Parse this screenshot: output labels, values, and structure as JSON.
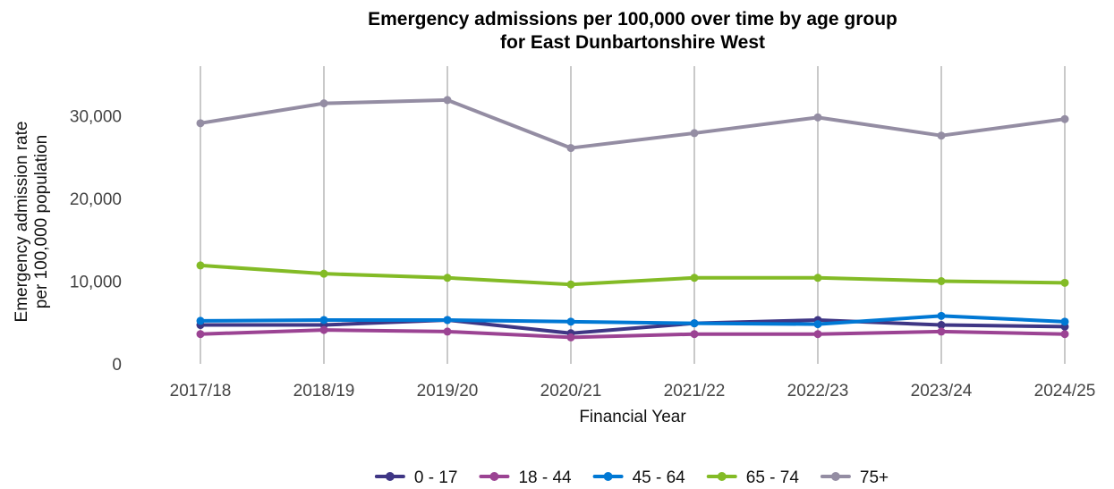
{
  "chart_data": {
    "type": "line",
    "title_line1": "Emergency admissions per 100,000 over time by age group",
    "title_line2": "for East Dunbartonshire West",
    "xlabel": "Financial Year",
    "ylabel_line1": "Emergency admission rate",
    "ylabel_line2": "per 100,000 population",
    "categories": [
      "2017/18",
      "2018/19",
      "2019/20",
      "2020/21",
      "2021/22",
      "2022/23",
      "2023/24",
      "2024/25"
    ],
    "y_ticks": [
      0,
      10000,
      20000,
      30000
    ],
    "y_tick_labels": [
      "0",
      "10,000",
      "20,000",
      "30,000"
    ],
    "ylim": [
      0,
      36000
    ],
    "grid": "vertical",
    "legend_position": "bottom",
    "series": [
      {
        "name": "0 - 17",
        "color": "#3f3685",
        "values": [
          4700,
          4700,
          5300,
          3700,
          4900,
          5300,
          4700,
          4500
        ]
      },
      {
        "name": "18 - 44",
        "color": "#9b4393",
        "values": [
          3600,
          4100,
          3900,
          3200,
          3600,
          3600,
          3900,
          3600
        ]
      },
      {
        "name": "45 - 64",
        "color": "#0078d4",
        "values": [
          5200,
          5300,
          5300,
          5100,
          4900,
          4800,
          5800,
          5100
        ]
      },
      {
        "name": "65 - 74",
        "color": "#83bb26",
        "values": [
          11900,
          10900,
          10400,
          9600,
          10400,
          10400,
          10000,
          9800
        ]
      },
      {
        "name": "75+",
        "color": "#948da3",
        "values": [
          29100,
          31500,
          31900,
          26100,
          27900,
          29800,
          27600,
          29600
        ]
      }
    ]
  }
}
